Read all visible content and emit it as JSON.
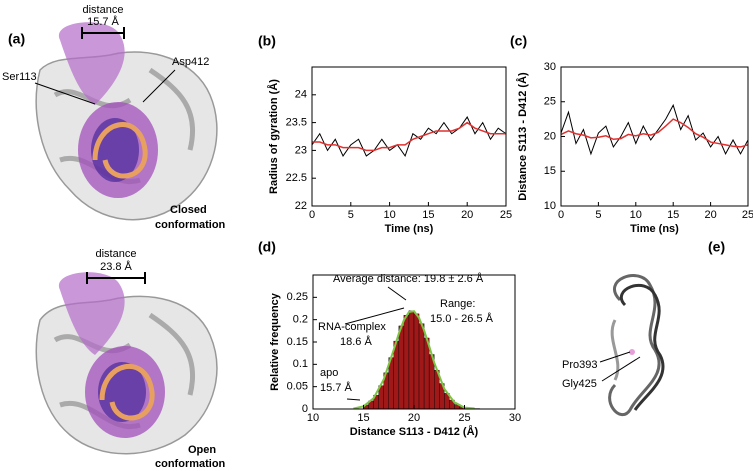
{
  "panels": {
    "a": {
      "label": "(a)",
      "closed": {
        "distance_label": "distance",
        "distance_value": "15.7 Å",
        "left_residue": "Ser113",
        "right_residue": "Asp412",
        "state": "Closed",
        "state_word": "conformation"
      },
      "open": {
        "distance_label": "distance",
        "distance_value": "23.8 Å",
        "state": "Open",
        "state_word": "conformation"
      }
    },
    "e": {
      "label": "(e)",
      "residue_1": "Pro393",
      "residue_2": "Gly425"
    }
  },
  "chart_data": [
    {
      "type": "line",
      "panel_label": "(b)",
      "xlabel": "Time (ns)",
      "ylabel": "Radius of gyration (Å)",
      "x": [
        0,
        1,
        2,
        3,
        4,
        5,
        6,
        7,
        8,
        9,
        10,
        11,
        12,
        13,
        14,
        15,
        16,
        17,
        18,
        19,
        20,
        21,
        22,
        23,
        24,
        25
      ],
      "series": [
        {
          "color": "#000000",
          "values": [
            23.1,
            23.3,
            23.0,
            23.2,
            22.9,
            23.1,
            23.2,
            22.9,
            23.0,
            23.2,
            23.0,
            23.1,
            22.9,
            23.3,
            23.2,
            23.4,
            23.3,
            23.5,
            23.3,
            23.4,
            23.6,
            23.3,
            23.5,
            23.2,
            23.4,
            23.3
          ]
        },
        {
          "color": "#e0312f",
          "values": [
            23.15,
            23.15,
            23.1,
            23.1,
            23.05,
            23.05,
            23.05,
            23.0,
            23.0,
            23.05,
            23.05,
            23.1,
            23.1,
            23.2,
            23.25,
            23.3,
            23.35,
            23.35,
            23.35,
            23.4,
            23.5,
            23.4,
            23.35,
            23.3,
            23.3,
            23.3
          ]
        }
      ],
      "xlim": [
        0,
        25
      ],
      "xticks": [
        0,
        5,
        10,
        15,
        20,
        25
      ],
      "ylim": [
        22,
        24.5
      ],
      "yticks": [
        22,
        22.5,
        23,
        23.5,
        24
      ]
    },
    {
      "type": "line",
      "panel_label": "(c)",
      "xlabel": "Time (ns)",
      "ylabel": "Distance S113 - D412 (Å)",
      "x": [
        0,
        1,
        2,
        3,
        4,
        5,
        6,
        7,
        8,
        9,
        10,
        11,
        12,
        13,
        14,
        15,
        16,
        17,
        18,
        19,
        20,
        21,
        22,
        23,
        24,
        25
      ],
      "series": [
        {
          "color": "#000000",
          "values": [
            20.5,
            23.5,
            19.0,
            21.0,
            17.5,
            20.5,
            21.5,
            18.5,
            20.0,
            22.0,
            19.0,
            21.5,
            19.5,
            21.0,
            22.5,
            24.5,
            21.0,
            23.0,
            19.5,
            20.5,
            18.5,
            20.0,
            17.5,
            19.5,
            17.5,
            19.5
          ]
        },
        {
          "color": "#e0312f",
          "values": [
            20.3,
            20.8,
            20.4,
            20.2,
            19.8,
            19.9,
            20.1,
            19.6,
            19.7,
            20.3,
            20.1,
            20.4,
            20.2,
            20.6,
            21.5,
            22.5,
            22.0,
            21.3,
            20.4,
            19.9,
            19.2,
            19.0,
            18.8,
            18.6,
            18.5,
            18.8
          ]
        }
      ],
      "xlim": [
        0,
        25
      ],
      "xticks": [
        0,
        5,
        10,
        15,
        20,
        25
      ],
      "ylim": [
        10,
        30
      ],
      "yticks": [
        10,
        15,
        20,
        25,
        30
      ]
    },
    {
      "type": "histogram",
      "panel_label": "(d)",
      "xlabel": "Distance S113 - D412 (Å)",
      "ylabel": "Relative frequency",
      "bins": [
        15,
        15.5,
        16,
        16.5,
        17,
        17.5,
        18,
        18.5,
        19,
        19.5,
        20,
        20.5,
        21,
        21.5,
        22,
        22.5,
        23,
        23.5,
        24,
        24.5,
        25,
        25.5,
        26,
        26.5
      ],
      "values": [
        0.009,
        0.018,
        0.031,
        0.052,
        0.081,
        0.115,
        0.152,
        0.186,
        0.21,
        0.22,
        0.213,
        0.191,
        0.159,
        0.122,
        0.087,
        0.057,
        0.035,
        0.02,
        0.01,
        0.005,
        0.002,
        0.001,
        0.001
      ],
      "color": "#a01818",
      "fit": {
        "color": "#7cc444",
        "x": [
          14,
          15,
          16,
          17,
          18,
          18.5,
          19,
          19.5,
          20,
          20.5,
          21,
          21.5,
          22,
          23,
          24,
          25,
          26
        ],
        "values": [
          0.001,
          0.006,
          0.024,
          0.066,
          0.133,
          0.169,
          0.199,
          0.217,
          0.219,
          0.204,
          0.176,
          0.141,
          0.104,
          0.045,
          0.015,
          0.003,
          0.001
        ]
      },
      "xlim": [
        10,
        30
      ],
      "xticks": [
        10,
        15,
        20,
        25,
        30
      ],
      "ylim": [
        0,
        0.3
      ],
      "yticks": [
        0,
        0.05,
        0.1,
        0.15,
        0.2,
        0.25
      ],
      "annotations": [
        "Average distance: 19.8 ± 2.6 Å",
        "Range:",
        "15.0 - 26.5 Å",
        "RNA-complex",
        "18.6 Å",
        "apo",
        "15.7 Å"
      ]
    }
  ]
}
